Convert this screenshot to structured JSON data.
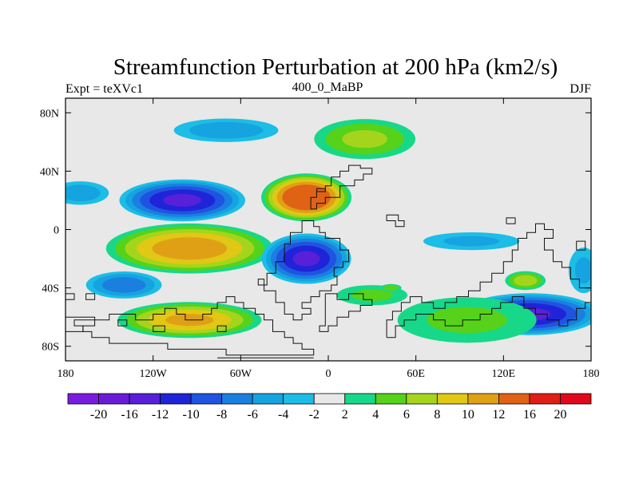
{
  "chart_data": {
    "type": "heatmap",
    "title": "Streamfunction Perturbation at 200 hPa (km2/s)",
    "left_label": "Expt = teXVc1",
    "center_label": "400_0_MaBP",
    "right_label": "DJF",
    "x_range": [
      -180,
      180
    ],
    "y_range": [
      -90,
      90
    ],
    "x_ticks": [
      {
        "value": -180,
        "label": "180"
      },
      {
        "value": -120,
        "label": "120W"
      },
      {
        "value": -60,
        "label": "60W"
      },
      {
        "value": 0,
        "label": "0"
      },
      {
        "value": 60,
        "label": "60E"
      },
      {
        "value": 120,
        "label": "120E"
      },
      {
        "value": 180,
        "label": "180"
      }
    ],
    "y_ticks": [
      {
        "value": 80,
        "label": "80N"
      },
      {
        "value": 40,
        "label": "40N"
      },
      {
        "value": 0,
        "label": "0"
      },
      {
        "value": -40,
        "label": "40S"
      },
      {
        "value": -80,
        "label": "80S"
      }
    ],
    "levels": [
      -20,
      -16,
      -12,
      -10,
      -8,
      -6,
      -4,
      -2,
      2,
      4,
      6,
      8,
      10,
      12,
      16,
      20
    ],
    "level_labels": [
      "-20",
      "-16",
      "-12",
      "-10",
      "-8",
      "-6",
      "-4",
      "-2",
      "2",
      "4",
      "6",
      "8",
      "10",
      "12",
      "16",
      "20"
    ],
    "colors": [
      "#7b1be0",
      "#6a1bd8",
      "#5820d8",
      "#1f24d8",
      "#1f54e0",
      "#1b7fe0",
      "#15a4e0",
      "#1cbde6",
      "#e8e8e8",
      "#17d888",
      "#56d21a",
      "#a4d51c",
      "#e0c815",
      "#e0a015",
      "#e06215",
      "#e01e15",
      "#e0081a"
    ],
    "features": [
      {
        "lon": -100,
        "lat": 20,
        "value": -12,
        "rx": 45,
        "ry": 15
      },
      {
        "lon": -170,
        "lat": 25,
        "value": -5,
        "rx": 22,
        "ry": 9
      },
      {
        "lon": -70,
        "lat": 68,
        "value": -5,
        "rx": 40,
        "ry": 9
      },
      {
        "lon": -15,
        "lat": 22,
        "value": 15,
        "rx": 32,
        "ry": 17
      },
      {
        "lon": 25,
        "lat": 62,
        "value": 6,
        "rx": 38,
        "ry": 15
      },
      {
        "lon": -95,
        "lat": -13,
        "value": 11,
        "rx": 60,
        "ry": 18
      },
      {
        "lon": -15,
        "lat": -20,
        "value": -12,
        "rx": 32,
        "ry": 18
      },
      {
        "lon": 98,
        "lat": -8,
        "value": -4,
        "rx": 38,
        "ry": 7
      },
      {
        "lon": -140,
        "lat": -38,
        "value": -7,
        "rx": 28,
        "ry": 10
      },
      {
        "lon": -95,
        "lat": -62,
        "value": 10,
        "rx": 52,
        "ry": 13
      },
      {
        "lon": 138,
        "lat": -58,
        "value": -12,
        "rx": 50,
        "ry": 15
      },
      {
        "lon": 135,
        "lat": -35,
        "value": 7,
        "rx": 15,
        "ry": 7
      },
      {
        "lon": 95,
        "lat": -62,
        "value": 4,
        "rx": 55,
        "ry": 18
      },
      {
        "lon": 175,
        "lat": -28,
        "value": -4,
        "rx": 12,
        "ry": 18
      },
      {
        "lon": 30,
        "lat": -45,
        "value": 4,
        "rx": 28,
        "ry": 8
      },
      {
        "lon": 43,
        "lat": -40,
        "value": 5,
        "rx": 8,
        "ry": 3
      }
    ],
    "coastlines": [
      [
        [
          -18,
          -62
        ],
        [
          -18,
          -58
        ],
        [
          -12,
          -58
        ],
        [
          -12,
          -54
        ],
        [
          -18,
          -54
        ],
        [
          -18,
          -50
        ],
        [
          -12,
          -50
        ],
        [
          -12,
          -46
        ],
        [
          -6,
          -46
        ],
        [
          -6,
          -42
        ],
        [
          2,
          -42
        ],
        [
          2,
          -38
        ],
        [
          6,
          -38
        ],
        [
          6,
          -32
        ],
        [
          4,
          -32
        ],
        [
          4,
          -26
        ],
        [
          10,
          -26
        ],
        [
          10,
          -22
        ],
        [
          14,
          -22
        ],
        [
          14,
          -14
        ],
        [
          8,
          -14
        ],
        [
          8,
          -6
        ],
        [
          -2,
          -6
        ],
        [
          -2,
          -2
        ],
        [
          -6,
          -2
        ],
        [
          -6,
          2
        ],
        [
          -10,
          2
        ],
        [
          -10,
          6
        ],
        [
          -18,
          6
        ],
        [
          -18,
          -2
        ],
        [
          -26,
          -2
        ],
        [
          -26,
          -10
        ],
        [
          -30,
          -10
        ],
        [
          -30,
          -22
        ],
        [
          -36,
          -22
        ],
        [
          -36,
          -30
        ],
        [
          -42,
          -30
        ],
        [
          -42,
          -38
        ],
        [
          -48,
          -38
        ],
        [
          -48,
          -34
        ],
        [
          -44,
          -34
        ],
        [
          -44,
          -42
        ],
        [
          -36,
          -42
        ],
        [
          -36,
          -50
        ],
        [
          -30,
          -50
        ],
        [
          -30,
          -58
        ],
        [
          -24,
          -58
        ],
        [
          -24,
          -62
        ],
        [
          -18,
          -62
        ]
      ],
      [
        [
          -12,
          14
        ],
        [
          -8,
          14
        ],
        [
          -8,
          18
        ],
        [
          -2,
          18
        ],
        [
          -2,
          22
        ],
        [
          8,
          22
        ],
        [
          8,
          30
        ],
        [
          18,
          30
        ],
        [
          18,
          34
        ],
        [
          24,
          34
        ],
        [
          24,
          38
        ],
        [
          30,
          38
        ],
        [
          30,
          42
        ],
        [
          22,
          42
        ],
        [
          22,
          44
        ],
        [
          14,
          44
        ],
        [
          14,
          40
        ],
        [
          8,
          40
        ],
        [
          8,
          36
        ],
        [
          2,
          36
        ],
        [
          2,
          30
        ],
        [
          -2,
          30
        ],
        [
          -2,
          26
        ],
        [
          -8,
          26
        ],
        [
          -8,
          22
        ],
        [
          -12,
          22
        ],
        [
          -12,
          14
        ]
      ],
      [
        [
          -8,
          28
        ],
        [
          -2,
          28
        ],
        [
          -2,
          26
        ],
        [
          -8,
          26
        ],
        [
          -8,
          28
        ]
      ],
      [
        [
          42,
          10
        ],
        [
          48,
          10
        ],
        [
          48,
          6
        ],
        [
          52,
          6
        ],
        [
          52,
          2
        ],
        [
          46,
          2
        ],
        [
          46,
          6
        ],
        [
          40,
          6
        ],
        [
          40,
          10
        ],
        [
          42,
          10
        ]
      ],
      [
        [
          -2,
          -44
        ],
        [
          6,
          -44
        ],
        [
          6,
          -48
        ],
        [
          14,
          -48
        ],
        [
          14,
          -44
        ],
        [
          24,
          -44
        ],
        [
          24,
          -48
        ],
        [
          30,
          -48
        ],
        [
          30,
          -52
        ],
        [
          22,
          -52
        ],
        [
          22,
          -56
        ],
        [
          14,
          -56
        ],
        [
          14,
          -60
        ],
        [
          6,
          -60
        ],
        [
          6,
          -66
        ],
        [
          0,
          -66
        ],
        [
          0,
          -70
        ],
        [
          -6,
          -70
        ],
        [
          -6,
          -66
        ],
        [
          -2,
          -66
        ],
        [
          -2,
          -44
        ]
      ],
      [
        [
          -138,
          -58
        ],
        [
          -132,
          -58
        ],
        [
          -132,
          -62
        ],
        [
          -120,
          -62
        ],
        [
          -120,
          -58
        ],
        [
          -112,
          -58
        ],
        [
          -112,
          -54
        ],
        [
          -104,
          -54
        ],
        [
          -104,
          -58
        ],
        [
          -98,
          -58
        ],
        [
          -98,
          -62
        ],
        [
          -86,
          -62
        ],
        [
          -86,
          -58
        ],
        [
          -80,
          -58
        ],
        [
          -80,
          -54
        ],
        [
          -76,
          -54
        ],
        [
          -76,
          -50
        ],
        [
          -70,
          -50
        ],
        [
          -70,
          -46
        ],
        [
          -64,
          -46
        ],
        [
          -64,
          -50
        ],
        [
          -58,
          -50
        ],
        [
          -58,
          -54
        ],
        [
          -50,
          -54
        ],
        [
          -50,
          -58
        ],
        [
          -44,
          -58
        ],
        [
          -44,
          -62
        ],
        [
          -38,
          -62
        ],
        [
          -38,
          -70
        ],
        [
          -30,
          -70
        ],
        [
          -30,
          -74
        ],
        [
          -24,
          -74
        ],
        [
          -24,
          -78
        ],
        [
          -18,
          -78
        ],
        [
          -18,
          -82
        ],
        [
          -10,
          -82
        ],
        [
          -10,
          -86
        ],
        [
          -70,
          -86
        ],
        [
          -70,
          -82
        ],
        [
          -110,
          -82
        ],
        [
          -110,
          -78
        ],
        [
          -150,
          -78
        ],
        [
          -150,
          -74
        ],
        [
          -162,
          -74
        ],
        [
          -162,
          -70
        ],
        [
          -168,
          -70
        ],
        [
          -168,
          -66
        ],
        [
          -174,
          -66
        ],
        [
          -174,
          -62
        ],
        [
          -150,
          -62
        ],
        [
          -150,
          -58
        ],
        [
          -138,
          -58
        ]
      ],
      [
        [
          -144,
          -62
        ],
        [
          -138,
          -62
        ],
        [
          -138,
          -66
        ],
        [
          -144,
          -66
        ],
        [
          -144,
          -62
        ]
      ],
      [
        [
          -120,
          -66
        ],
        [
          -112,
          -66
        ],
        [
          -112,
          -70
        ],
        [
          -120,
          -70
        ],
        [
          -120,
          -66
        ]
      ],
      [
        [
          -76,
          -66
        ],
        [
          -70,
          -66
        ],
        [
          -70,
          -70
        ],
        [
          -76,
          -70
        ],
        [
          -76,
          -66
        ]
      ],
      [
        [
          40,
          -74
        ],
        [
          46,
          -74
        ],
        [
          46,
          -66
        ],
        [
          52,
          -66
        ],
        [
          52,
          -62
        ],
        [
          60,
          -62
        ],
        [
          60,
          -58
        ],
        [
          72,
          -58
        ],
        [
          72,
          -62
        ],
        [
          80,
          -62
        ],
        [
          80,
          -66
        ],
        [
          92,
          -66
        ],
        [
          92,
          -62
        ],
        [
          104,
          -62
        ],
        [
          104,
          -58
        ],
        [
          112,
          -58
        ],
        [
          112,
          -54
        ],
        [
          118,
          -54
        ],
        [
          118,
          -50
        ],
        [
          126,
          -50
        ],
        [
          126,
          -46
        ],
        [
          134,
          -46
        ],
        [
          134,
          -54
        ],
        [
          142,
          -54
        ],
        [
          142,
          -58
        ],
        [
          150,
          -58
        ],
        [
          150,
          -62
        ],
        [
          158,
          -62
        ],
        [
          158,
          -66
        ],
        [
          164,
          -66
        ],
        [
          164,
          -62
        ],
        [
          170,
          -62
        ],
        [
          170,
          -54
        ],
        [
          176,
          -54
        ],
        [
          176,
          -50
        ],
        [
          180,
          -50
        ],
        [
          180,
          -40
        ],
        [
          172,
          -40
        ],
        [
          172,
          -34
        ],
        [
          166,
          -34
        ],
        [
          166,
          -26
        ],
        [
          160,
          -26
        ],
        [
          160,
          -22
        ],
        [
          154,
          -22
        ],
        [
          154,
          -14
        ],
        [
          148,
          -14
        ],
        [
          148,
          -6
        ],
        [
          154,
          -6
        ],
        [
          154,
          0
        ],
        [
          148,
          0
        ],
        [
          148,
          4
        ],
        [
          142,
          4
        ],
        [
          142,
          -2
        ],
        [
          136,
          -2
        ],
        [
          136,
          -6
        ],
        [
          130,
          -6
        ],
        [
          130,
          -14
        ],
        [
          126,
          -14
        ],
        [
          126,
          -22
        ],
        [
          120,
          -22
        ],
        [
          120,
          -30
        ],
        [
          112,
          -30
        ],
        [
          112,
          -36
        ],
        [
          104,
          -36
        ],
        [
          104,
          -42
        ],
        [
          96,
          -42
        ],
        [
          96,
          -46
        ],
        [
          88,
          -46
        ],
        [
          88,
          -50
        ],
        [
          80,
          -50
        ],
        [
          80,
          -54
        ],
        [
          72,
          -54
        ],
        [
          72,
          -50
        ],
        [
          64,
          -50
        ],
        [
          64,
          -46
        ],
        [
          56,
          -46
        ],
        [
          56,
          -50
        ],
        [
          50,
          -50
        ],
        [
          50,
          -56
        ],
        [
          44,
          -56
        ],
        [
          44,
          -62
        ],
        [
          40,
          -62
        ],
        [
          40,
          -74
        ]
      ],
      [
        [
          122,
          4
        ],
        [
          128,
          4
        ],
        [
          128,
          8
        ],
        [
          122,
          8
        ],
        [
          122,
          4
        ]
      ],
      [
        [
          170,
          -8
        ],
        [
          176,
          -8
        ],
        [
          176,
          -14
        ],
        [
          170,
          -14
        ],
        [
          170,
          -8
        ]
      ],
      [
        [
          -180,
          -44
        ],
        [
          -174,
          -44
        ],
        [
          -174,
          -48
        ],
        [
          -180,
          -48
        ],
        [
          -180,
          -44
        ]
      ],
      [
        [
          -166,
          -44
        ],
        [
          -160,
          -44
        ],
        [
          -160,
          -48
        ],
        [
          -166,
          -48
        ],
        [
          -166,
          -44
        ]
      ],
      [
        [
          -180,
          -60
        ],
        [
          -160,
          -60
        ],
        [
          -160,
          -66
        ],
        [
          -168,
          -66
        ],
        [
          -168,
          -70
        ],
        [
          -180,
          -70
        ],
        [
          -180,
          -60
        ]
      ],
      [
        [
          -76,
          -88
        ],
        [
          -10,
          -88
        ]
      ]
    ]
  }
}
